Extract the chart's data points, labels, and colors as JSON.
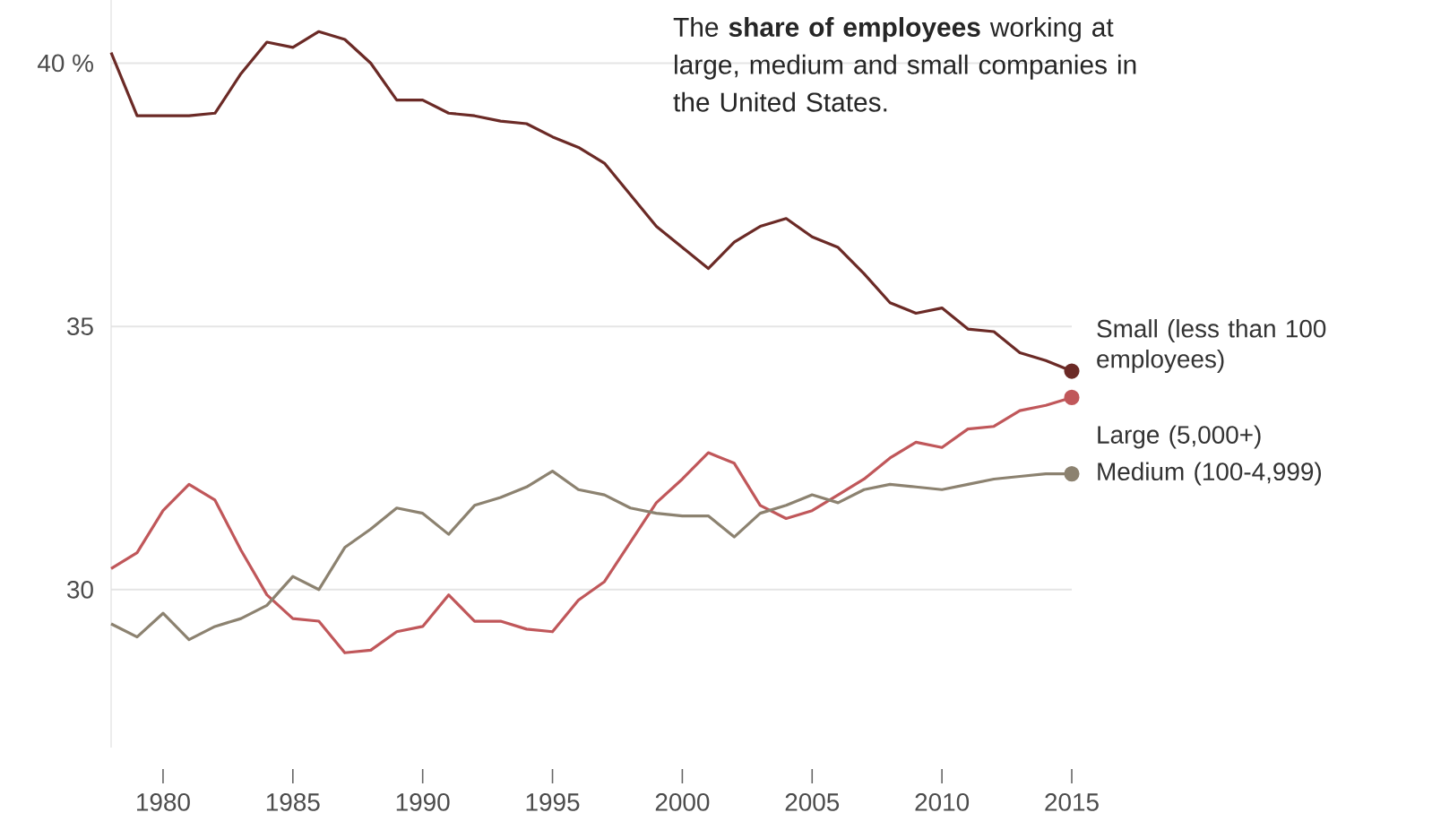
{
  "chart_data": {
    "type": "line",
    "title": "The **share of employees** working at large, medium and small companies in the United States.",
    "x": [
      1978,
      1979,
      1980,
      1981,
      1982,
      1983,
      1984,
      1985,
      1986,
      1987,
      1988,
      1989,
      1990,
      1991,
      1992,
      1993,
      1994,
      1995,
      1996,
      1997,
      1998,
      1999,
      2000,
      2001,
      2002,
      2003,
      2004,
      2005,
      2006,
      2007,
      2008,
      2009,
      2010,
      2011,
      2012,
      2013,
      2014,
      2015
    ],
    "series": [
      {
        "name": "Small (less than 100 employees)",
        "color": "#6b2a26",
        "values": [
          40.2,
          39.0,
          39.0,
          39.0,
          39.05,
          39.8,
          40.4,
          40.3,
          40.6,
          40.45,
          40.0,
          39.3,
          39.3,
          39.05,
          39.0,
          38.9,
          38.85,
          38.6,
          38.4,
          38.1,
          37.5,
          36.9,
          36.5,
          36.1,
          36.6,
          36.9,
          37.05,
          36.7,
          36.5,
          36.0,
          35.45,
          35.25,
          35.35,
          34.95,
          34.9,
          34.5,
          34.35,
          34.15
        ]
      },
      {
        "name": "Large (5,000+)",
        "color": "#c0575a",
        "values": [
          30.4,
          30.7,
          31.5,
          32.0,
          31.7,
          30.75,
          29.9,
          29.45,
          29.4,
          28.8,
          28.85,
          29.2,
          29.3,
          29.9,
          29.4,
          29.4,
          29.25,
          29.2,
          29.8,
          30.15,
          30.9,
          31.65,
          32.1,
          32.6,
          32.4,
          31.6,
          31.35,
          31.5,
          31.8,
          32.1,
          32.5,
          32.8,
          32.7,
          33.05,
          33.1,
          33.4,
          33.5,
          33.65
        ]
      },
      {
        "name": "Medium (100-4,999)",
        "color": "#8c8270",
        "values": [
          29.35,
          29.1,
          29.55,
          29.05,
          29.3,
          29.45,
          29.7,
          30.25,
          30.0,
          30.8,
          31.15,
          31.55,
          31.45,
          31.05,
          31.6,
          31.75,
          31.95,
          32.25,
          31.9,
          31.8,
          31.55,
          31.45,
          31.4,
          31.4,
          31.0,
          31.45,
          31.6,
          31.8,
          31.65,
          31.9,
          32.0,
          31.95,
          31.9,
          32.0,
          32.1,
          32.15,
          32.2,
          32.2
        ]
      }
    ],
    "xlim": [
      1978,
      2015
    ],
    "ylim": [
      27,
      41.2
    ],
    "xticks": [
      1980,
      1985,
      1990,
      1995,
      2000,
      2005,
      2010,
      2015
    ],
    "yticks": [
      30,
      35,
      {
        "value": 40,
        "label": "40 %"
      }
    ],
    "grid": "y",
    "line_style": "solid"
  }
}
